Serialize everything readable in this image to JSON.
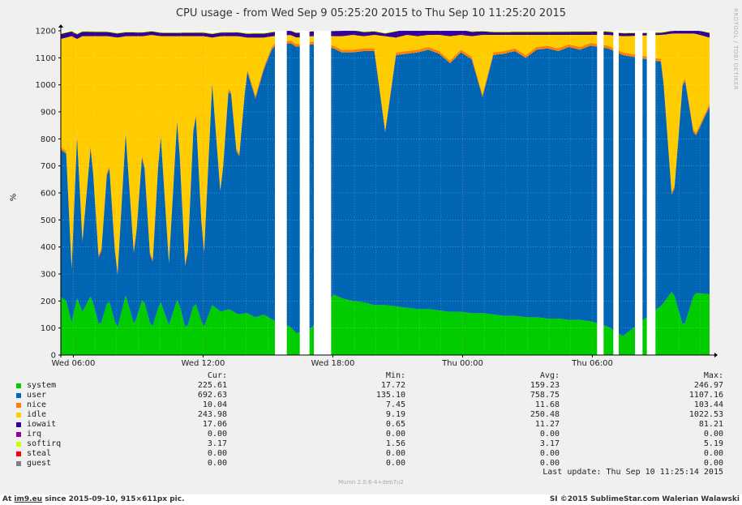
{
  "title": "CPU usage - from Wed Sep  9 05:25:20 2015 to Thu Sep 10 11:25:20 2015",
  "side_text": "RRDTOOL / TOBI OETIKER",
  "ylabel": "%",
  "legend_headers": {
    "cur": "Cur:",
    "min": "Min:",
    "avg": "Avg:",
    "max": "Max:"
  },
  "legend": [
    {
      "name": "system",
      "color": "#00cc00",
      "cur": "225.61",
      "min": "17.72",
      "avg": "159.23",
      "max": "246.97"
    },
    {
      "name": "user",
      "color": "#0066b3",
      "cur": "692.63",
      "min": "135.10",
      "avg": "758.75",
      "max": "1107.16"
    },
    {
      "name": "nice",
      "color": "#ff8000",
      "cur": "10.04",
      "min": "7.45",
      "avg": "11.68",
      "max": "103.44"
    },
    {
      "name": "idle",
      "color": "#ffcc00",
      "cur": "243.98",
      "min": "9.19",
      "avg": "250.48",
      "max": "1022.53"
    },
    {
      "name": "iowait",
      "color": "#330099",
      "cur": "17.06",
      "min": "0.65",
      "avg": "11.27",
      "max": "81.21"
    },
    {
      "name": "irq",
      "color": "#990099",
      "cur": "0.00",
      "min": "0.00",
      "avg": "0.00",
      "max": "0.00"
    },
    {
      "name": "softirq",
      "color": "#ccff00",
      "cur": "3.17",
      "min": "1.56",
      "avg": "3.17",
      "max": "5.19"
    },
    {
      "name": "steal",
      "color": "#ff0000",
      "cur": "0.00",
      "min": "0.00",
      "avg": "0.00",
      "max": "0.00"
    },
    {
      "name": "guest",
      "color": "#808080",
      "cur": "0.00",
      "min": "0.00",
      "avg": "0.00",
      "max": "0.00"
    }
  ],
  "last_update": "Last update:  Thu Sep 10 11:25:14 2015",
  "munin_version": "Munin 2.0.6-4+deb7u2",
  "footer": {
    "left_prefix": "At ",
    "left_link": "im9.eu",
    "left_suffix": " since 2015-09-10, 915×611px pic.",
    "right": "SI ©2015 SublimeStar.com Walerian Walawski"
  },
  "chart_data": {
    "type": "area",
    "stacked": true,
    "title": "CPU usage - from Wed Sep  9 05:25:20 2015 to Thu Sep 10 11:25:20 2015",
    "xlabel": "",
    "ylabel": "%",
    "ylim": [
      0,
      1200
    ],
    "yticks": [
      0,
      100,
      200,
      300,
      400,
      500,
      600,
      700,
      800,
      900,
      1000,
      1100,
      1200
    ],
    "grid": true,
    "x_ticks": [
      "Wed 06:00",
      "Wed 12:00",
      "Wed 18:00",
      "Thu 00:00",
      "Thu 06:00"
    ],
    "x_tick_hours": [
      0.58,
      6.58,
      12.58,
      18.58,
      24.58
    ],
    "x_range_hours": [
      0,
      30
    ],
    "x_unit": "hours after Wed Sep 9 05:25:20 2015",
    "gaps_hours": [
      [
        9.9,
        10.45
      ],
      [
        11.05,
        11.5
      ],
      [
        11.7,
        12.5
      ],
      [
        24.8,
        25.1
      ],
      [
        25.55,
        25.8
      ],
      [
        26.55,
        26.9
      ],
      [
        27.1,
        27.5
      ]
    ],
    "series_order": [
      "system",
      "user",
      "nice",
      "idle",
      "iowait",
      "softirq"
    ],
    "series": [
      {
        "name": "system",
        "color": "#00cc00",
        "x": [
          0,
          0.25,
          0.5,
          0.75,
          1,
          1.4,
          1.8,
          2.2,
          2.6,
          3,
          3.4,
          3.8,
          4.2,
          4.6,
          5,
          5.4,
          5.8,
          6.2,
          6.6,
          7,
          7.4,
          7.8,
          8.2,
          8.6,
          9,
          9.4,
          9.8,
          10.6,
          10.9,
          11.6,
          12.6,
          13,
          13.5,
          14,
          14.5,
          15,
          15.5,
          16,
          16.5,
          17,
          17.5,
          18,
          18.5,
          19,
          19.5,
          20,
          20.5,
          21,
          21.5,
          22,
          22.5,
          23,
          23.5,
          24,
          24.5,
          25.3,
          26,
          27.8,
          28.3,
          28.8,
          29.3,
          30
        ],
        "values": [
          215,
          200,
          120,
          210,
          160,
          220,
          100,
          210,
          95,
          220,
          110,
          215,
          95,
          200,
          110,
          210,
          90,
          200,
          100,
          185,
          160,
          170,
          150,
          155,
          140,
          150,
          130,
          105,
          80,
          100,
          225,
          210,
          200,
          195,
          185,
          185,
          180,
          175,
          170,
          170,
          165,
          160,
          160,
          155,
          155,
          150,
          145,
          145,
          140,
          140,
          135,
          135,
          130,
          130,
          125,
          105,
          70,
          185,
          240,
          100,
          230,
          225
        ]
      },
      {
        "name": "user",
        "color": "#0066b3",
        "x": [
          0,
          0.25,
          0.5,
          0.75,
          1,
          1.4,
          1.8,
          2.2,
          2.6,
          3,
          3.4,
          3.8,
          4.2,
          4.6,
          5,
          5.4,
          5.8,
          6.2,
          6.6,
          7,
          7.4,
          7.8,
          8.2,
          8.6,
          9,
          9.4,
          9.8,
          10.6,
          10.9,
          11.6,
          12.6,
          13,
          13.5,
          14,
          14.5,
          15,
          15.5,
          16,
          16.5,
          17,
          17.5,
          18,
          18.5,
          19,
          19.5,
          20,
          20.5,
          21,
          21.5,
          22,
          22.5,
          23,
          23.5,
          24,
          24.5,
          25.3,
          26,
          27.8,
          28.3,
          28.8,
          29.3,
          30
        ],
        "values": [
          545,
          545,
          200,
          600,
          260,
          570,
          200,
          540,
          170,
          600,
          240,
          570,
          180,
          640,
          230,
          690,
          160,
          760,
          240,
          820,
          420,
          860,
          540,
          900,
          810,
          910,
          1010,
          1050,
          1060,
          1050,
          910,
          910,
          920,
          930,
          940,
          640,
          930,
          940,
          950,
          960,
          950,
          920,
          960,
          940,
          800,
          960,
          970,
          980,
          960,
          990,
          1000,
          990,
          1010,
          1000,
          1020,
          1030,
          1040,
          900,
          300,
          950,
          570,
          695
        ]
      },
      {
        "name": "nice",
        "color": "#ff8000",
        "x": [
          0,
          30
        ],
        "values": [
          10,
          10
        ]
      },
      {
        "name": "idle",
        "color": "#ffcc00",
        "x": [
          0,
          0.25,
          0.5,
          0.75,
          1,
          1.4,
          1.8,
          2.2,
          2.6,
          3,
          3.4,
          3.8,
          4.2,
          4.6,
          5,
          5.4,
          5.8,
          6.2,
          6.6,
          7,
          7.4,
          7.8,
          8.2,
          8.6,
          9,
          9.4,
          9.8,
          10.6,
          10.9,
          11.6,
          12.6,
          13,
          13.5,
          14,
          14.5,
          15,
          15.5,
          16,
          16.5,
          17,
          17.5,
          18,
          18.5,
          19,
          19.5,
          20,
          20.5,
          21,
          21.5,
          22,
          22.5,
          23,
          23.5,
          24,
          24.5,
          25.3,
          26,
          27.8,
          28.3,
          28.8,
          29.3,
          30
        ],
        "values": [
          400,
          420,
          850,
          350,
          750,
          380,
          870,
          420,
          900,
          350,
          820,
          385,
          900,
          330,
          830,
          270,
          920,
          210,
          830,
          160,
          590,
          140,
          480,
          110,
          215,
          105,
          30,
          20,
          25,
          20,
          35,
          50,
          55,
          45,
          50,
          345,
          55,
          60,
          50,
          45,
          60,
          90,
          55,
          75,
          220,
          65,
          60,
          50,
          75,
          45,
          40,
          50,
          35,
          45,
          30,
          40,
          60,
          90,
          640,
          130,
          380,
          245
        ]
      },
      {
        "name": "iowait",
        "color": "#330099",
        "x": [
          0,
          5,
          10,
          13,
          15,
          16,
          20,
          25,
          27.8,
          30
        ],
        "values": [
          18,
          12,
          15,
          20,
          10,
          35,
          10,
          12,
          8,
          17
        ]
      },
      {
        "name": "softirq",
        "color": "#ccff00",
        "x": [
          0,
          30
        ],
        "values": [
          3,
          3
        ]
      }
    ]
  }
}
